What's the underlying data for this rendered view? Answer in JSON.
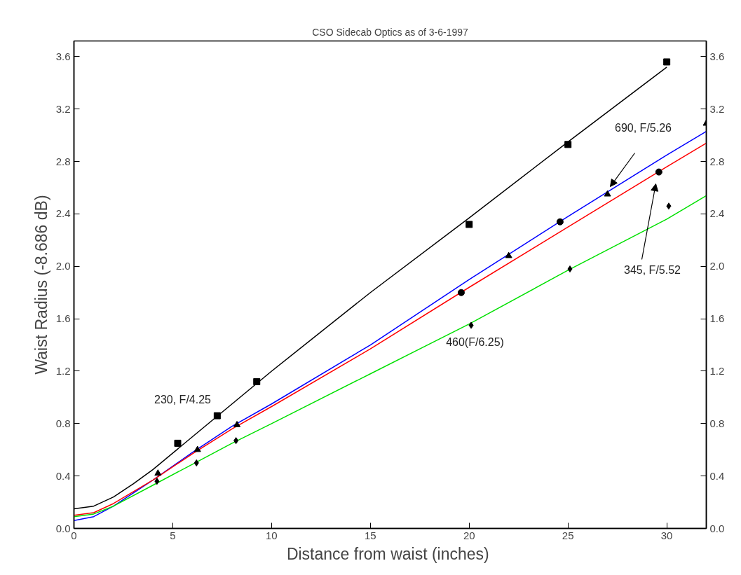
{
  "chart_data": {
    "type": "line",
    "title": "CSO Sidecab Optics as of 3-6-1997",
    "xlabel": "Distance from waist  (inches)",
    "ylabel": "Waist Radius (-8.686 dB)",
    "xlim": [
      0,
      32
    ],
    "xticks": [
      0,
      5,
      10,
      15,
      20,
      25,
      30
    ],
    "ylim": [
      0,
      3.72
    ],
    "yticks": [
      {
        "value": 0,
        "label": "0.0"
      },
      0.4,
      0.8,
      1.2,
      1.6,
      {
        "value": 2,
        "label": "2.0"
      },
      2.4,
      2.8,
      3.2,
      3.6
    ],
    "y2lim": [
      0,
      3.72
    ],
    "y2ticks": [
      {
        "value": 0,
        "label": "0.0"
      },
      0.4,
      0.8,
      1.2,
      1.6,
      {
        "value": 2,
        "label": "2.0"
      },
      2.4,
      2.8,
      3.2,
      3.6
    ],
    "grid": false,
    "series": [
      {
        "color": "#000000",
        "x": [
          0,
          1,
          2,
          3,
          4,
          6,
          8,
          10,
          15,
          20,
          25,
          30
        ],
        "values": [
          0.15,
          0.17,
          0.24,
          0.34,
          0.45,
          0.7,
          0.95,
          1.2,
          1.8,
          2.37,
          2.95,
          3.52
        ]
      },
      {
        "color": "#0000ff",
        "x": [
          0,
          1,
          2,
          4,
          6,
          8,
          10,
          15,
          20,
          25,
          30,
          32
        ],
        "values": [
          0.06,
          0.09,
          0.17,
          0.37,
          0.58,
          0.78,
          0.95,
          1.4,
          1.9,
          2.38,
          2.85,
          3.03
        ]
      },
      {
        "color": "#ff0000",
        "x": [
          0,
          1,
          2,
          4,
          6,
          8,
          10,
          15,
          20,
          25,
          30,
          32
        ],
        "values": [
          0.1,
          0.12,
          0.19,
          0.37,
          0.57,
          0.76,
          0.93,
          1.37,
          1.84,
          2.3,
          2.76,
          2.94
        ]
      },
      {
        "color": "#00e000",
        "x": [
          0,
          1,
          2,
          4,
          6,
          8,
          10,
          15,
          20,
          25,
          30,
          32
        ],
        "values": [
          0.09,
          0.11,
          0.17,
          0.33,
          0.49,
          0.65,
          0.8,
          1.18,
          1.56,
          1.97,
          2.36,
          2.54
        ]
      },
      {
        "type": "scatter",
        "marker": "square",
        "color": "#000000",
        "x": [
          5.25,
          7.25,
          9.25,
          20,
          25,
          30
        ],
        "values": [
          0.65,
          0.86,
          1.12,
          2.32,
          2.93,
          3.56
        ]
      },
      {
        "type": "scatter",
        "marker": "triangle",
        "color": "#000000",
        "x": [
          4.25,
          6.25,
          8.25,
          22,
          27,
          32
        ],
        "values": [
          0.42,
          0.6,
          0.79,
          2.08,
          2.55,
          3.09
        ]
      },
      {
        "type": "scatter",
        "marker": "circle",
        "color": "#000000",
        "x": [
          19.6,
          24.6,
          29.6
        ],
        "values": [
          1.8,
          2.34,
          2.72
        ]
      },
      {
        "type": "scatter",
        "marker": "diamond",
        "color": "#000000",
        "x": [
          4.2,
          6.2,
          8.2,
          20.1,
          25.1,
          30.1
        ],
        "values": [
          0.36,
          0.5,
          0.67,
          1.55,
          1.98,
          2.46
        ]
      }
    ],
    "annotations": [
      "230, F/4.25",
      "690, F/5.26",
      "345, F/5.52",
      "460(F/6.25)"
    ]
  }
}
